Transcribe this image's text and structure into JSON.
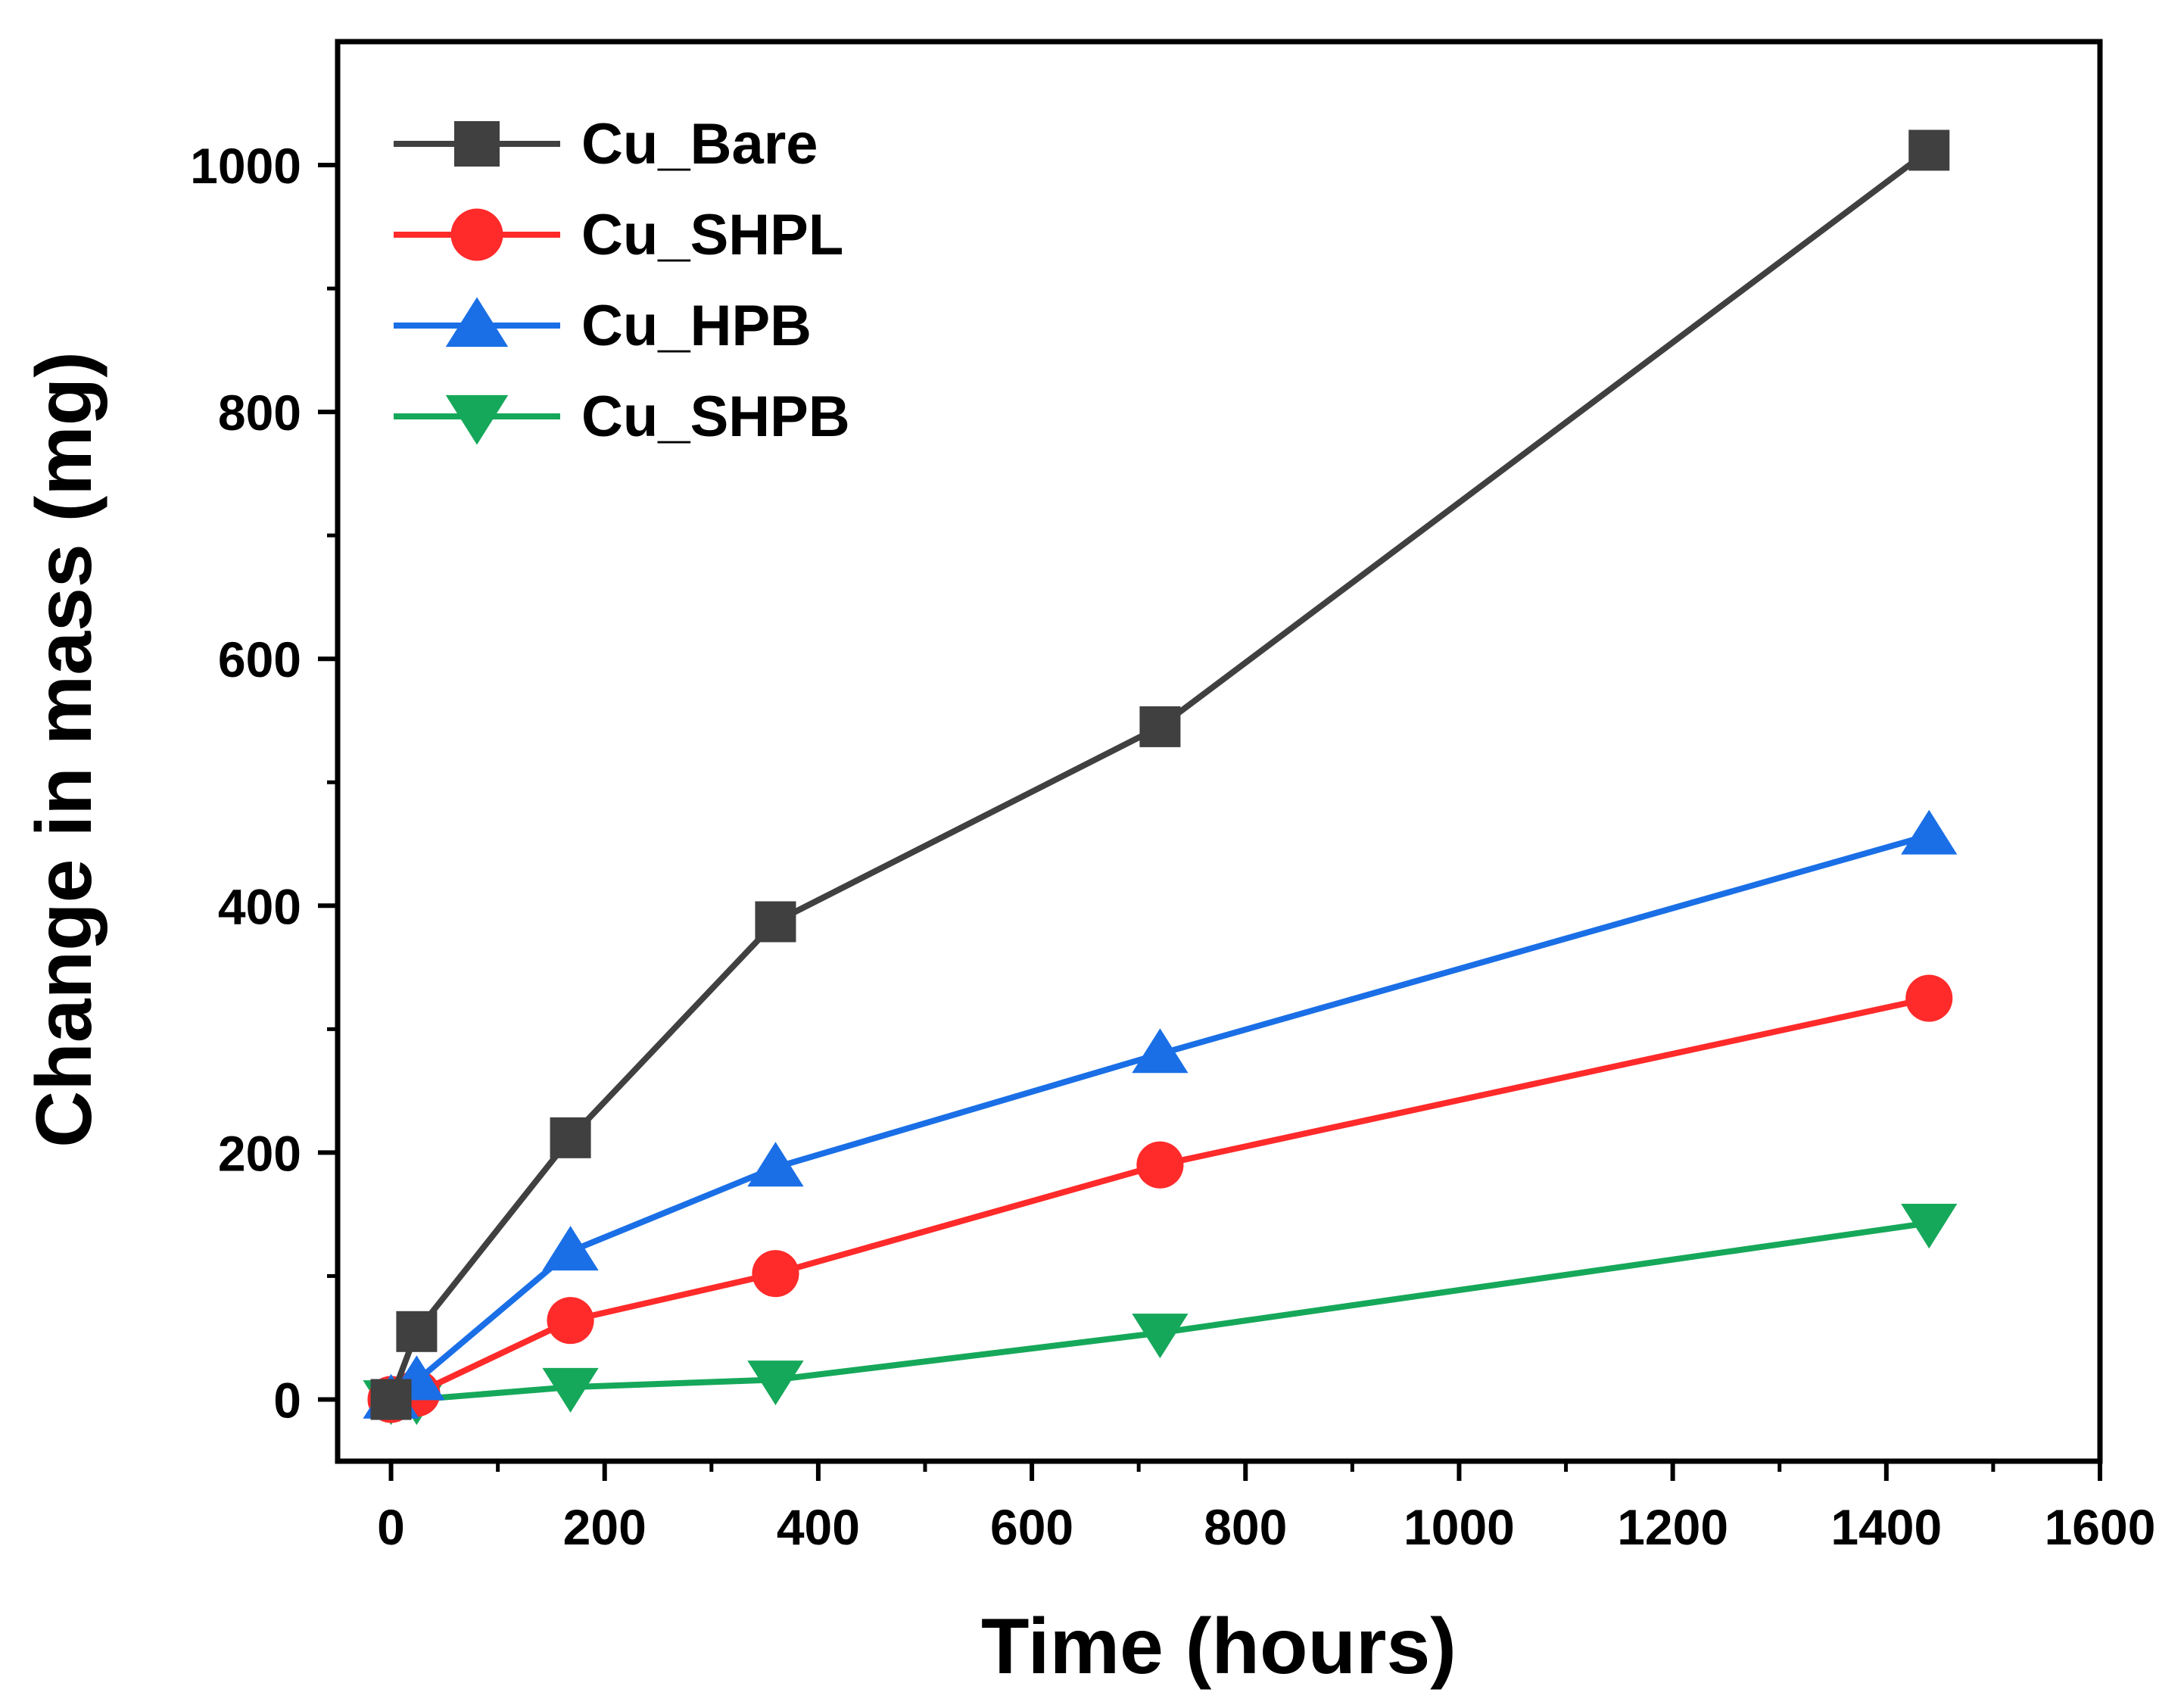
{
  "chart_data": {
    "type": "line",
    "title": "",
    "xlabel": "Time (hours)",
    "ylabel": "Change in mass (mg)",
    "xlim": [
      -50,
      1600
    ],
    "ylim": [
      -50,
      1100
    ],
    "xticks": [
      0,
      200,
      400,
      600,
      800,
      1000,
      1200,
      1400,
      1600
    ],
    "yticks": [
      0,
      200,
      400,
      600,
      800,
      1000
    ],
    "xtick_labels": [
      "0",
      "200",
      "400",
      "600",
      "800",
      "1000",
      "1200",
      "1400",
      "1600"
    ],
    "ytick_labels": [
      "0",
      "200",
      "400",
      "600",
      "800",
      "1000"
    ],
    "grid": false,
    "legend_position": "top-left",
    "x": [
      0,
      24,
      168,
      360,
      720,
      1440
    ],
    "series": [
      {
        "name": "Cu_Bare",
        "color": "#404040",
        "marker": "square",
        "values": [
          0,
          55,
          212,
          387,
          545,
          1012
        ]
      },
      {
        "name": "Cu_SHPL",
        "color": "#ff2a2a",
        "marker": "circle",
        "values": [
          0,
          5,
          64,
          102,
          190,
          325
        ]
      },
      {
        "name": "Cu_HPB",
        "color": "#1a6fe6",
        "marker": "triangle-up",
        "values": [
          0,
          15,
          120,
          188,
          280,
          457
        ]
      },
      {
        "name": "Cu_SHPB",
        "color": "#16a85a",
        "marker": "triangle-down",
        "values": [
          0,
          0,
          10,
          16,
          54,
          143
        ]
      }
    ]
  }
}
